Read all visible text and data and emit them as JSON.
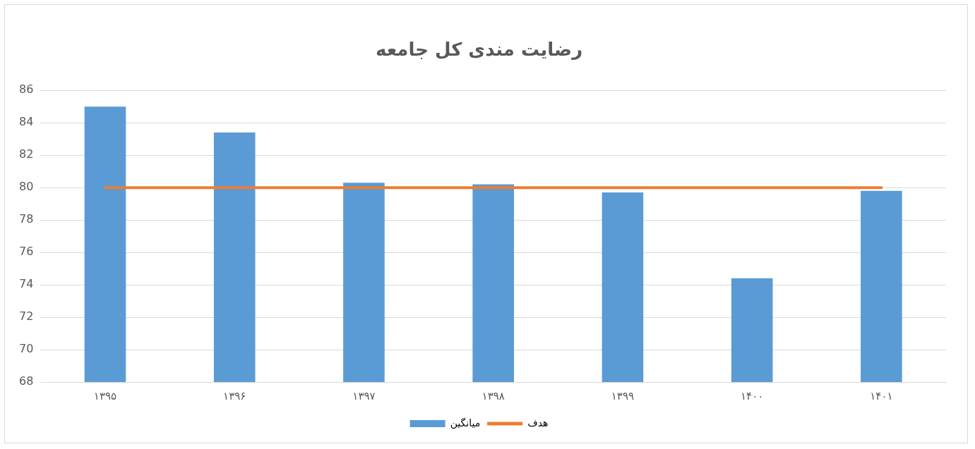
{
  "chart_data": {
    "type": "bar",
    "title": "رضایت مندی کل جامعه",
    "categories": [
      "۱۳۹۵",
      "۱۳۹۶",
      "۱۳۹۷",
      "۱۳۹۸",
      "۱۳۹۹",
      "۱۴۰۰",
      "۱۴۰۱"
    ],
    "series": [
      {
        "name": "میانگین",
        "color": "#5b9bd5",
        "values": [
          85.0,
          83.4,
          80.3,
          80.2,
          79.7,
          74.4,
          79.8
        ]
      },
      {
        "name": "هدف",
        "type": "line",
        "color": "#ed7d31",
        "values": [
          80,
          80,
          80,
          80,
          80,
          80,
          80
        ]
      }
    ],
    "ylim": [
      68,
      86
    ],
    "yticks": [
      68,
      70,
      72,
      74,
      76,
      78,
      80,
      82,
      84,
      86
    ],
    "grid": "y",
    "legend": "bottom",
    "marker": "none",
    "line_style": "solid"
  }
}
